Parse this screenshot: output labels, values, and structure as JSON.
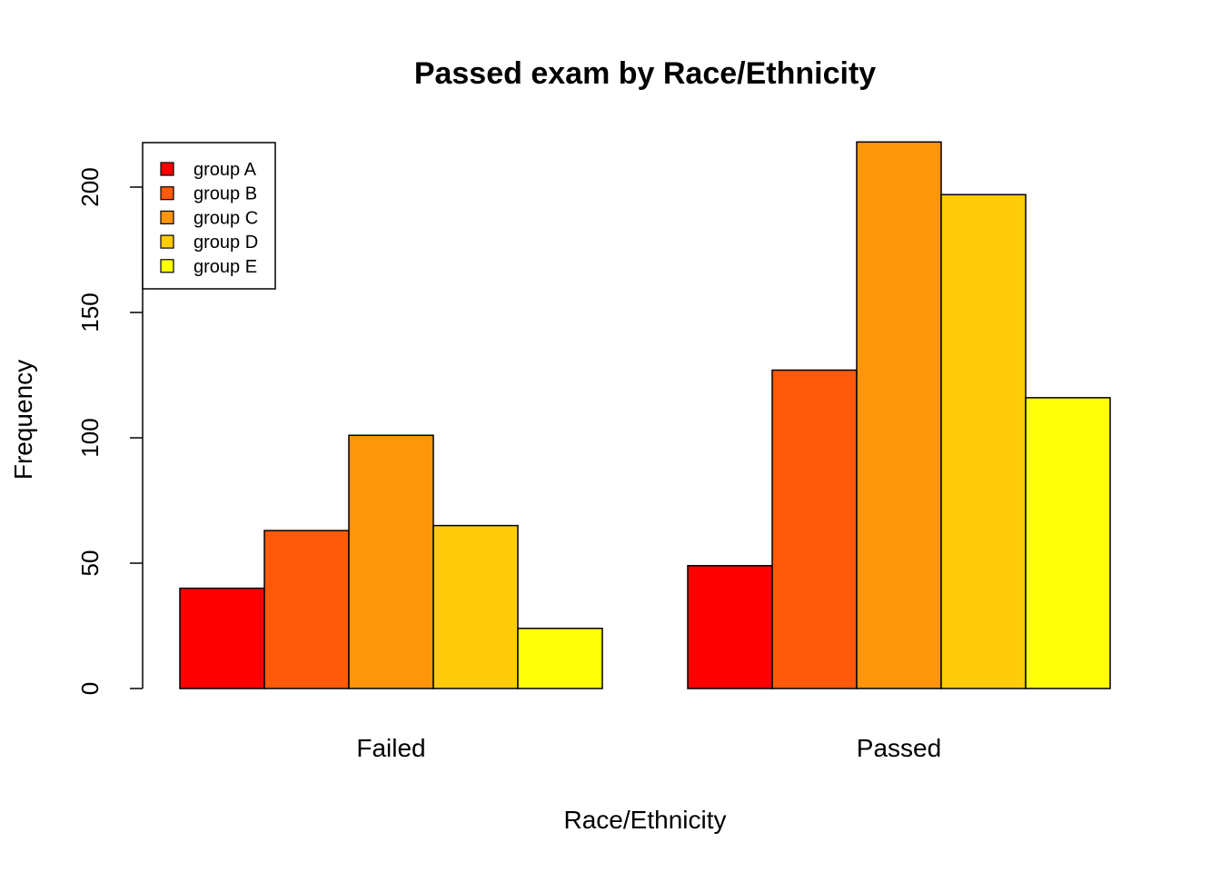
{
  "chart_data": {
    "type": "bar",
    "layout": "grouped",
    "title": "Passed exam by Race/Ethnicity",
    "xlabel": "Race/Ethnicity",
    "ylabel": "Frequency",
    "ylim": [
      0,
      218
    ],
    "yticks": [
      0,
      50,
      100,
      150,
      200
    ],
    "grid": false,
    "legend_position": "top-left",
    "categories": [
      "Failed",
      "Passed"
    ],
    "series": [
      {
        "name": "group A",
        "color": "#FF0000",
        "values": [
          40,
          49
        ]
      },
      {
        "name": "group B",
        "color": "#FF5A0A",
        "values": [
          63,
          127
        ]
      },
      {
        "name": "group C",
        "color": "#FF950A",
        "values": [
          101,
          218
        ]
      },
      {
        "name": "group D",
        "color": "#FFCC0A",
        "values": [
          65,
          197
        ]
      },
      {
        "name": "group E",
        "color": "#FFFF0A",
        "values": [
          24,
          116
        ]
      }
    ]
  }
}
